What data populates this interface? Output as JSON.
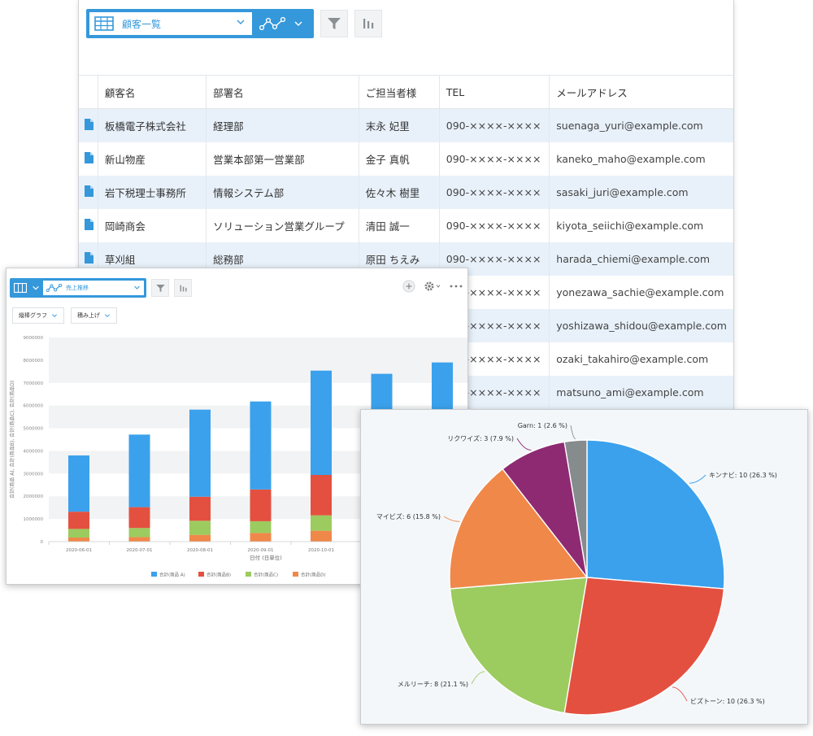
{
  "table_view": {
    "view_name": "顧客一覧",
    "columns": [
      "顧客名",
      "部署名",
      "ご担当者様",
      "TEL",
      "メールアドレス"
    ],
    "rows": [
      [
        "板橋電子株式会社",
        "経理部",
        "末永 妃里",
        "090-××××-××××",
        "suenaga_yuri@example.com"
      ],
      [
        "新山物産",
        "営業本部第一営業部",
        "金子 真帆",
        "090-××××-××××",
        "kaneko_maho@example.com"
      ],
      [
        "岩下税理士事務所",
        "情報システム部",
        "佐々木 樹里",
        "090-××××-××××",
        "sasaki_juri@example.com"
      ],
      [
        "岡崎商会",
        "ソリューション営業グループ",
        "清田 誠一",
        "090-××××-××××",
        "kiyota_seiichi@example.com"
      ],
      [
        "草刈組",
        "総務部",
        "原田 ちえみ",
        "090-××××-××××",
        "harada_chiemi@example.com"
      ],
      [
        "",
        "",
        "",
        "090-××××-××××",
        "yonezawa_sachie@example.com"
      ],
      [
        "",
        "",
        "",
        "090-××××-××××",
        "yoshizawa_shidou@example.com"
      ],
      [
        "",
        "",
        "",
        "090-××××-××××",
        "ozaki_takahiro@example.com"
      ],
      [
        "",
        "",
        "",
        "090-××××-××××",
        "matsuno_ami@example.com"
      ]
    ]
  },
  "bar_view": {
    "view_name": "売上推移",
    "chart_type_button": "縦棒グラフ",
    "stack_button": "積み上げ"
  },
  "chart_data": [
    {
      "type": "bar",
      "stacked": true,
      "categories": [
        "2020-06-01",
        "2020-07-01",
        "2020-08-01",
        "2020-09-01",
        "2020-10-01",
        "",
        ""
      ],
      "series": [
        {
          "name": "合計(商品D)",
          "color": "#f0884a",
          "values": [
            180000,
            200000,
            300000,
            380000,
            480000,
            0,
            0
          ]
        },
        {
          "name": "合計(商品C)",
          "color": "#9ccb5f",
          "values": [
            380000,
            400000,
            620000,
            520000,
            680000,
            0,
            0
          ]
        },
        {
          "name": "合計(商品B)",
          "color": "#e4503f",
          "values": [
            760000,
            920000,
            1060000,
            1400000,
            1780000,
            0,
            0
          ]
        },
        {
          "name": "合計(商品 A)",
          "color": "#3ba1ec",
          "values": [
            2480000,
            3200000,
            3840000,
            3880000,
            4600000,
            7400000,
            7900000
          ]
        }
      ],
      "ylim": [
        0,
        9000000
      ],
      "yticks": [
        "0",
        "1000000",
        "2000000",
        "3000000",
        "4000000",
        "5000000",
        "6000000",
        "7000000",
        "8000000",
        "9000000"
      ],
      "xlabel": "日付 (日単位)",
      "ylabel": "合計(商品 A), 合計(商品B), 合計(商品C), 合計(商品D)",
      "legend": "bottom"
    },
    {
      "type": "pie",
      "slices": [
        {
          "label": "キンナビ: 10 (26.3 %)",
          "value": 10,
          "color": "#3ba1ec"
        },
        {
          "label": "ビズトーン: 10 (26.3 %)",
          "value": 10,
          "color": "#e4503f"
        },
        {
          "label": "メルリーチ: 8 (21.1 %)",
          "value": 8,
          "color": "#9ccb5f"
        },
        {
          "label": "マイビズ: 6 (15.8 %)",
          "value": 6,
          "color": "#f0884a"
        },
        {
          "label": "リクワイズ: 3 (7.9 %)",
          "value": 3,
          "color": "#8e2a72"
        },
        {
          "label": "Garn: 1 (2.6 %)",
          "value": 1,
          "color": "#868b8e"
        }
      ]
    }
  ]
}
